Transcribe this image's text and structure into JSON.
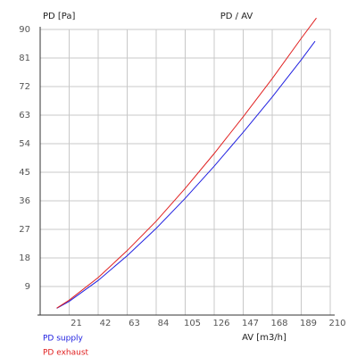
{
  "chart_data": {
    "type": "line",
    "title": "PD / AV",
    "y_label": "PD [Pa]",
    "x_label": "AV [m3/h]",
    "xlim": [
      0,
      210
    ],
    "xticks": [
      21,
      42,
      63,
      84,
      105,
      126,
      147,
      168,
      189,
      210
    ],
    "ylim": [
      0,
      90
    ],
    "yticks": [
      9,
      18,
      27,
      36,
      45,
      54,
      63,
      72,
      81,
      90
    ],
    "grid": true,
    "legend": "bottom-left",
    "series": [
      {
        "name": "PD supply",
        "color": "#2020e0",
        "x": [
          12,
          21,
          42,
          63,
          84,
          105,
          126,
          147,
          168,
          189,
          199
        ],
        "values": [
          2.1,
          4.3,
          10.9,
          18.7,
          27.3,
          36.8,
          46.9,
          57.6,
          68.7,
          80.4,
          86.3
        ]
      },
      {
        "name": "PD exhaust",
        "color": "#e02020",
        "x": [
          12,
          21,
          42,
          63,
          84,
          105,
          126,
          147,
          168,
          189,
          200
        ],
        "values": [
          2.2,
          4.7,
          11.8,
          20.3,
          29.6,
          39.9,
          50.9,
          62.5,
          74.5,
          87.2,
          93.6
        ]
      }
    ]
  }
}
